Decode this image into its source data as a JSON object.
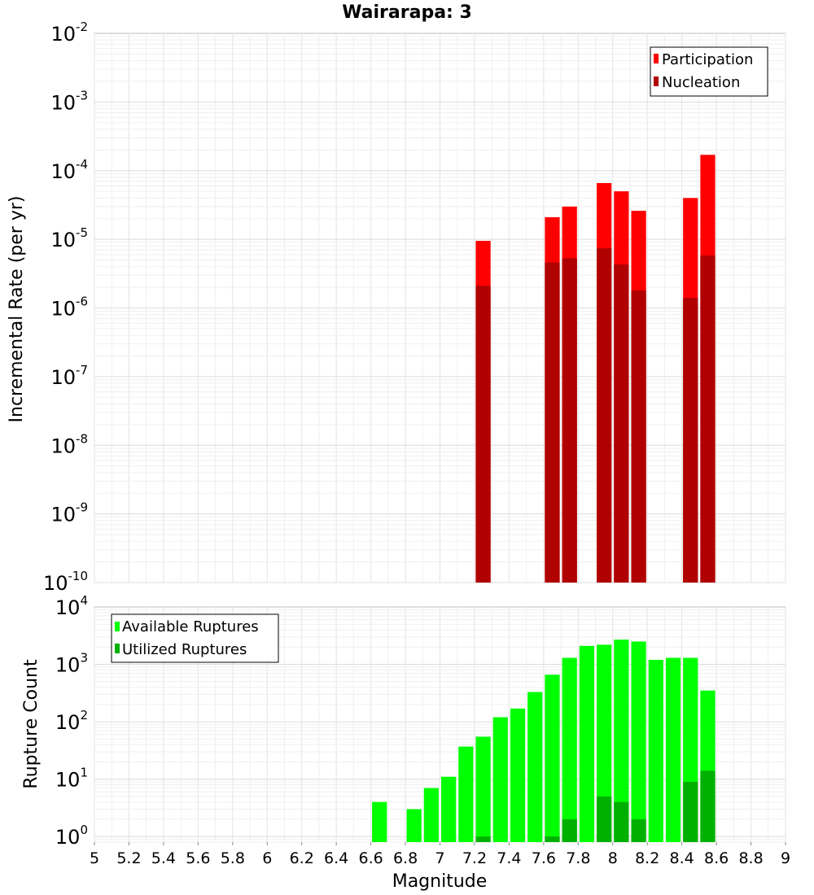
{
  "chart_data": [
    {
      "type": "bar",
      "title": "Wairarapa: 3",
      "ylabel": "Incremental Rate (per yr)",
      "xlabel": "",
      "yscale": "log",
      "ylim": [
        1e-10,
        0.01
      ],
      "xlim": [
        5,
        9
      ],
      "y_tick_exponents": [
        "-10",
        "-9",
        "-8",
        "-7",
        "-6",
        "-5",
        "-4",
        "-3",
        "-2"
      ],
      "y_tick_base": "10",
      "legend_position": "top-right",
      "bar_width": 0.1,
      "series": [
        {
          "name": "Participation",
          "color": "#ff0000",
          "x": [
            7.25,
            7.65,
            7.75,
            7.95,
            8.05,
            8.15,
            8.45,
            8.55
          ],
          "values": [
            9.5e-06,
            2.1e-05,
            3e-05,
            6.6e-05,
            5e-05,
            2.6e-05,
            4e-05,
            0.00017
          ]
        },
        {
          "name": "Nucleation",
          "color": "#b00000",
          "x": [
            7.25,
            7.65,
            7.75,
            7.95,
            8.05,
            8.15,
            8.45,
            8.55
          ],
          "values": [
            2.1e-06,
            4.6e-06,
            5.3e-06,
            7.4e-06,
            4.3e-06,
            1.8e-06,
            1.4e-06,
            5.8e-06
          ]
        }
      ]
    },
    {
      "type": "bar",
      "title": "",
      "ylabel": "Rupture Count",
      "xlabel": "Magnitude",
      "yscale": "log",
      "ylim": [
        0.8,
        10000
      ],
      "xlim": [
        5,
        9
      ],
      "x_ticks": [
        "5",
        "5.2",
        "5.4",
        "5.6",
        "5.8",
        "6",
        "6.2",
        "6.4",
        "6.6",
        "6.8",
        "7",
        "7.2",
        "7.4",
        "7.6",
        "7.8",
        "8",
        "8.2",
        "8.4",
        "8.6",
        "8.8",
        "9"
      ],
      "y_tick_exponents": [
        "0",
        "1",
        "2",
        "3",
        "4"
      ],
      "y_tick_base": "10",
      "legend_position": "top-left",
      "bar_width": 0.1,
      "series": [
        {
          "name": "Available Ruptures",
          "color": "#00ff00",
          "x": [
            6.65,
            6.85,
            6.95,
            7.05,
            7.15,
            7.25,
            7.35,
            7.45,
            7.55,
            7.65,
            7.75,
            7.85,
            7.95,
            8.05,
            8.15,
            8.25,
            8.35,
            8.45,
            8.55
          ],
          "values": [
            4,
            3,
            7,
            11,
            37,
            55,
            120,
            170,
            330,
            660,
            1300,
            2100,
            2200,
            2700,
            2500,
            1200,
            1300,
            1300,
            350
          ]
        },
        {
          "name": "Utilized Ruptures",
          "color": "#00b000",
          "x": [
            7.25,
            7.65,
            7.75,
            7.95,
            8.05,
            8.15,
            8.45,
            8.55
          ],
          "values": [
            1,
            1,
            2,
            5,
            4,
            2,
            9,
            14
          ]
        }
      ]
    }
  ]
}
